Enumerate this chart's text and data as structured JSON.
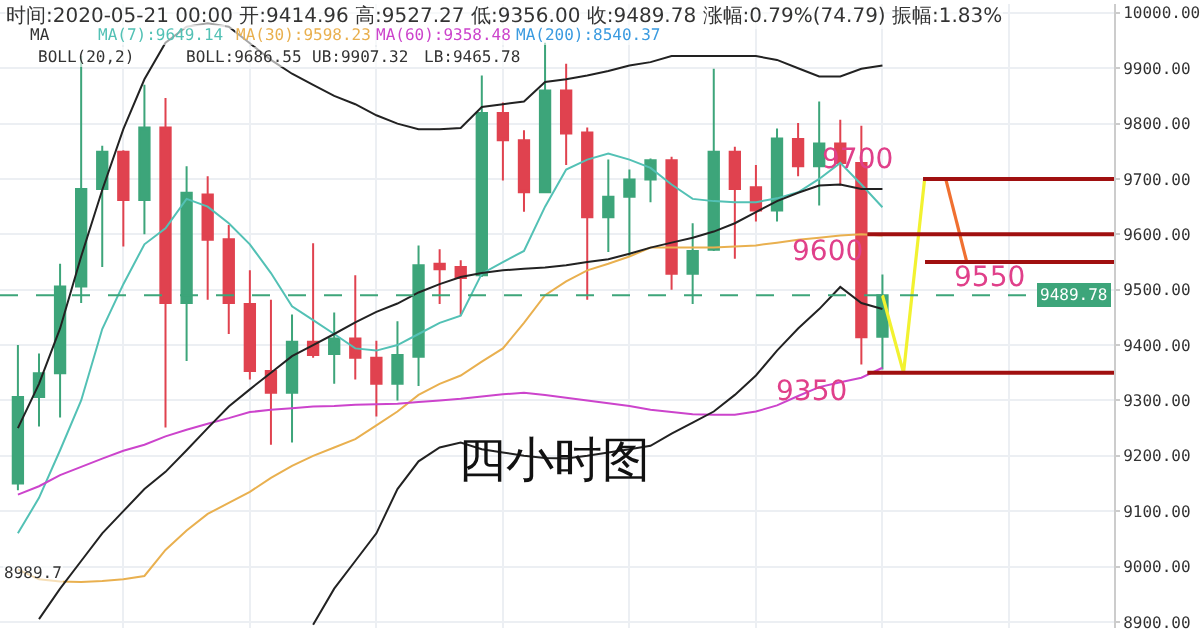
{
  "chart_data": {
    "type": "candlestick",
    "categories": [
      null,
      null,
      null,
      null,
      null,
      null,
      null,
      null,
      null,
      null,
      null,
      null,
      null,
      null,
      null,
      null,
      null,
      null,
      null,
      null,
      null,
      null,
      null,
      null,
      null,
      null,
      null,
      null,
      null,
      null,
      null,
      null,
      null,
      null,
      null,
      null,
      null,
      null,
      null,
      null,
      null,
      null,
      null,
      null,
      null,
      null,
      null,
      null,
      null,
      null,
      null,
      null,
      null
    ],
    "ohlc": [
      [
        9150,
        9400,
        9138,
        9306
      ],
      [
        9306,
        9385,
        9253,
        9349
      ],
      [
        9349,
        9547,
        9269,
        9506
      ],
      [
        9506,
        9922,
        9476,
        9682
      ],
      [
        9682,
        9760,
        9541,
        9749
      ],
      [
        9749,
        9752,
        9578,
        9662
      ],
      [
        9662,
        9870,
        9600,
        9793
      ],
      [
        9793,
        9846,
        9251,
        9476
      ],
      [
        9476,
        9723,
        9371,
        9675
      ],
      [
        9672,
        9705,
        9482,
        9590
      ],
      [
        9591,
        9617,
        9420,
        9476
      ],
      [
        9474,
        9535,
        9338,
        9353
      ],
      [
        9353,
        9482,
        9220,
        9314
      ],
      [
        9314,
        9455,
        9224,
        9406
      ],
      [
        9406,
        9584,
        9377,
        9382
      ],
      [
        9384,
        9459,
        9330,
        9412
      ],
      [
        9412,
        9526,
        9338,
        9377
      ],
      [
        9377,
        9408,
        9271,
        9330
      ],
      [
        9330,
        9443,
        9300,
        9382
      ],
      [
        9379,
        9580,
        9326,
        9544
      ],
      [
        9547,
        9573,
        9474,
        9537
      ],
      [
        9541,
        9553,
        9453,
        9521
      ],
      [
        9526,
        9887,
        9523,
        9819
      ],
      [
        9819,
        9838,
        9697,
        9770
      ],
      [
        9770,
        9788,
        9641,
        9676
      ],
      [
        9676,
        9946,
        9674,
        9860
      ],
      [
        9860,
        9908,
        9725,
        9782
      ],
      [
        9784,
        9793,
        9482,
        9631
      ],
      [
        9631,
        9735,
        9568,
        9668
      ],
      [
        9668,
        9717,
        9561,
        9699
      ],
      [
        9699,
        9737,
        9658,
        9734
      ],
      [
        9734,
        9740,
        9500,
        9529
      ],
      [
        9529,
        9620,
        9474,
        9570
      ],
      [
        9572,
        9899,
        9570,
        9749
      ],
      [
        9749,
        9758,
        9556,
        9682
      ],
      [
        9685,
        9725,
        9623,
        9643
      ],
      [
        9643,
        9791,
        9623,
        9773
      ],
      [
        9772,
        9801,
        9705,
        9723
      ],
      [
        9723,
        9840,
        9652,
        9764
      ],
      [
        9764,
        9807,
        9688,
        9729
      ],
      [
        9729,
        9796,
        9365,
        9414
      ],
      [
        9414.96,
        9527.27,
        9356,
        9489.78
      ],
      null,
      null,
      null,
      null,
      null,
      null,
      null,
      null,
      null,
      null,
      null
    ],
    "colors": [
      "#3da57a",
      "#3da57a",
      "#3da57a",
      "#3da57a",
      "#3da57a",
      "#e0424f",
      "#3da57a",
      "#e0424f",
      "#3da57a",
      "#e0424f",
      "#e0424f",
      "#e0424f",
      "#e0424f",
      "#3da57a",
      "#e0424f",
      "#3da57a",
      "#e0424f",
      "#e0424f",
      "#3da57a",
      "#3da57a",
      "#e0424f",
      "#e0424f",
      "#3da57a",
      "#e0424f",
      "#e0424f",
      "#3da57a",
      "#e0424f",
      "#e0424f",
      "#3da57a",
      "#3da57a",
      "#3da57a",
      "#e0424f",
      "#3da57a",
      "#3da57a",
      "#e0424f",
      "#e0424f",
      "#3da57a",
      "#e0424f",
      "#3da57a",
      "#e0424f",
      "#e0424f",
      "#3da57a",
      null,
      null,
      null,
      null,
      null,
      null,
      null,
      null,
      null,
      null,
      null
    ],
    "series": [
      {
        "type": "line",
        "color": "#53c1b5",
        "values": [
          9060,
          9124,
          9210,
          9300,
          9429,
          9510,
          9582,
          9611,
          9664,
          9650,
          9620,
          9582,
          9530,
          9470,
          9445,
          9420,
          9394,
          9390,
          9400,
          9420,
          9440,
          9453,
          9529,
          9550,
          9570,
          9650,
          9717,
          9735,
          9746,
          9735,
          9720,
          9690,
          9664,
          9660,
          9658,
          9658,
          9665,
          9676,
          9700,
          9729,
          9690,
          9649,
          null,
          null,
          null,
          null,
          null,
          null,
          null,
          null,
          null,
          null,
          null
        ]
      },
      {
        "type": "line",
        "color": "#e9b04f",
        "values": [
          8995,
          8977,
          8973,
          8972,
          8974,
          8977,
          8983,
          9030,
          9065,
          9095,
          9115,
          9135,
          9160,
          9182,
          9200,
          9215,
          9230,
          9255,
          9280,
          9310,
          9330,
          9345,
          9370,
          9394,
          9440,
          9490,
          9515,
          9535,
          9547,
          9560,
          9576,
          9576,
          9576,
          9576,
          9578,
          9580,
          9585,
          9590,
          9594,
          9598,
          9600,
          9598,
          null,
          null,
          null,
          null,
          null,
          null,
          null,
          null,
          null,
          null,
          null
        ]
      },
      {
        "type": "line",
        "color": "#cc44cc",
        "values": [
          9130,
          9145,
          9165,
          9180,
          9195,
          9209,
          9220,
          9235,
          9247,
          9258,
          9268,
          9279,
          9283,
          9286,
          9289,
          9290,
          9292,
          9293,
          9294,
          9297,
          9300,
          9303,
          9307,
          9311,
          9314,
          9310,
          9305,
          9300,
          9295,
          9290,
          9283,
          9279,
          9275,
          9274,
          9274,
          9280,
          9291,
          9308,
          9324,
          9333,
          9341,
          9359,
          null,
          null,
          null,
          null,
          null,
          null,
          null,
          null,
          null,
          null,
          null
        ]
      },
      {
        "type": "line",
        "color": "#222222",
        "values": [
          9250,
          9330,
          9430,
          9560,
          9680,
          9790,
          9880,
          9946,
          9975,
          9981,
          9975,
          9945,
          9915,
          9890,
          9870,
          9850,
          9835,
          9815,
          9800,
          9790,
          9790,
          9792,
          9830,
          9835,
          9840,
          9875,
          9880,
          9887,
          9895,
          9905,
          9911,
          9922,
          9922,
          9922,
          9922,
          9922,
          9915,
          9900,
          9885,
          9885,
          9899,
          9905,
          null,
          null,
          null,
          null,
          null,
          null,
          null,
          null,
          null,
          null,
          null
        ]
      },
      {
        "type": "line",
        "color": "#222222",
        "values": [
          null,
          8905,
          8960,
          9010,
          9060,
          9100,
          9140,
          9171,
          9210,
          9250,
          9289,
          9320,
          9350,
          9380,
          9400,
          9420,
          9441,
          9460,
          9475,
          9495,
          9510,
          9523,
          9530,
          9535,
          9538,
          9540,
          9544,
          9550,
          9555,
          9565,
          9576,
          9585,
          9594,
          9605,
          9620,
          9640,
          9660,
          9675,
          9688,
          9690,
          9682,
          9682,
          null,
          null,
          null,
          null,
          null,
          null,
          null,
          null,
          null,
          null,
          null
        ]
      },
      {
        "type": "line",
        "color": "#222222",
        "values": [
          null,
          null,
          null,
          null,
          null,
          null,
          null,
          null,
          null,
          null,
          null,
          null,
          null,
          null,
          8895,
          8960,
          9010,
          9060,
          9140,
          9190,
          9215,
          9224,
          9212,
          9206,
          9200,
          9196,
          9195,
          9200,
          9206,
          9212,
          9218,
          9240,
          9260,
          9280,
          9310,
          9345,
          9390,
          9430,
          9465,
          9505,
          9476,
          9465,
          null,
          null,
          null,
          null,
          null,
          null,
          null,
          null,
          null,
          null,
          null
        ]
      },
      {
        "type": "line",
        "color": "#f2f230",
        "values": [
          null,
          null,
          null,
          null,
          null,
          null,
          null,
          null,
          null,
          null,
          null,
          null,
          null,
          null,
          null,
          null,
          null,
          null,
          null,
          null,
          null,
          null,
          null,
          null,
          null,
          null,
          null,
          null,
          null,
          null,
          null,
          null,
          null,
          null,
          null,
          null,
          null,
          null,
          null,
          null,
          null,
          9490,
          9350,
          9700,
          null,
          null,
          null,
          null,
          null,
          null,
          null,
          null,
          null
        ]
      },
      {
        "type": "line",
        "color": "#f07030",
        "values": [
          null,
          null,
          null,
          null,
          null,
          null,
          null,
          null,
          null,
          null,
          null,
          null,
          null,
          null,
          null,
          null,
          null,
          null,
          null,
          null,
          null,
          null,
          null,
          null,
          null,
          null,
          null,
          null,
          null,
          null,
          null,
          null,
          null,
          null,
          null,
          null,
          null,
          null,
          null,
          null,
          null,
          null,
          null,
          null,
          9700,
          9550,
          null,
          null,
          null,
          null,
          null,
          null,
          null
        ]
      }
    ],
    "ylim": [
      8889,
      10016
    ],
    "yticks": [
      {
        "value": 8900,
        "label": "8900.00"
      },
      {
        "value": 9000,
        "label": "9000.00"
      },
      {
        "value": 9100,
        "label": "9100.00"
      },
      {
        "value": 9200,
        "label": "9200.00"
      },
      {
        "value": 9300,
        "label": "9300.00"
      },
      {
        "value": 9400,
        "label": "9400.00"
      },
      {
        "value": 9500,
        "label": "9500.00"
      },
      {
        "value": 9600,
        "label": "9600.00"
      },
      {
        "value": 9700,
        "label": "9700.00"
      },
      {
        "value": 9800,
        "label": "9800.00"
      },
      {
        "value": 9900,
        "label": "9900.00"
      },
      {
        "value": 10000,
        "label": "10000.00"
      }
    ],
    "grid": true,
    "ref_lines": [
      {
        "axis": "y",
        "value": 9489.78,
        "label": "9489.78",
        "color": "#3da57a",
        "line_style": "dashed"
      },
      {
        "axis": "y",
        "value": 9700,
        "label": "9700",
        "color": "#a01010"
      },
      {
        "axis": "y",
        "value": 9600,
        "label": "9600",
        "color": "#a01010"
      },
      {
        "axis": "y",
        "value": 9550,
        "label": "9550",
        "color": "#a01010"
      },
      {
        "axis": "y",
        "value": 9350,
        "label": "9350",
        "color": "#a01010"
      }
    ],
    "annotations": [
      "时间:2020-05-21 00:00 开:9414.96 高:9527.27 低:9356.00 收:9489.78 涨幅:0.79%(74.79) 振幅:1.83%",
      "MA",
      "MA(7):9649.14",
      "MA(30):9598.23",
      "MA(60):9358.48",
      "MA(200):8540.37",
      "BOLL(20,2)",
      "BOLL:9686.55",
      "UB:9907.32",
      "LB:9465.78",
      {
        "text": "8989.7",
        "y": 8989.7
      },
      "四小时图"
    ]
  }
}
